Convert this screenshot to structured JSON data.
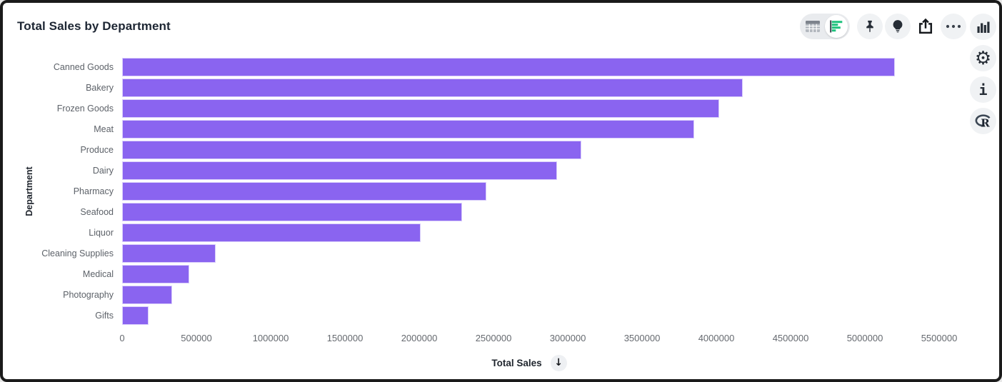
{
  "header": {
    "title": "Total Sales by Department"
  },
  "toolbar": {
    "view_toggle": [
      {
        "name": "table-view",
        "icon": "table-icon",
        "selected": false
      },
      {
        "name": "chart-view",
        "icon": "horizontal-bar-chart-icon",
        "selected": true
      }
    ],
    "buttons": [
      {
        "name": "pin",
        "icon": "pushpin-icon"
      },
      {
        "name": "insights",
        "icon": "lightbulb-icon"
      },
      {
        "name": "share",
        "icon": "share-export-icon"
      },
      {
        "name": "more-options",
        "icon": "ellipsis-icon"
      }
    ],
    "accent_green": "#1fc27d",
    "icon_dark": "#262d36",
    "pill_bg": "#e9ebee",
    "button_bg": "#f0f2f4"
  },
  "side_rail": {
    "buttons": [
      {
        "name": "chart-panel",
        "icon": "bar-chart-icon"
      },
      {
        "name": "settings",
        "icon": "gear-icon",
        "glyph": "⚙"
      },
      {
        "name": "info",
        "icon": "info-icon",
        "glyph": "i"
      },
      {
        "name": "r-language",
        "icon": "r-logo-icon",
        "glyph": "R"
      }
    ]
  },
  "sort_control": {
    "icon": "arrow-down-icon",
    "glyph": "↓"
  },
  "chart_data": {
    "type": "bar",
    "orientation": "horizontal",
    "title": "Total Sales by Department",
    "xlabel": "Total Sales",
    "ylabel": "Department",
    "categories": [
      "Canned Goods",
      "Bakery",
      "Frozen Goods",
      "Meat",
      "Produce",
      "Dairy",
      "Pharmacy",
      "Seafood",
      "Liquor",
      "Cleaning Supplies",
      "Medical",
      "Photography",
      "Gifts"
    ],
    "values": [
      5200000,
      4180000,
      4020000,
      3850000,
      3090000,
      2930000,
      2450000,
      2290000,
      2010000,
      630000,
      450000,
      335000,
      178000
    ],
    "bar_color": "#8a64f0",
    "bar_border_color": "#d9cefb",
    "xlim": [
      0,
      5600000
    ],
    "xticks": [
      0,
      500000,
      1000000,
      1500000,
      2000000,
      2500000,
      3000000,
      3500000,
      4000000,
      4500000,
      5000000,
      5500000
    ],
    "xtick_labels": [
      "0",
      "500000",
      "1000000",
      "1500000",
      "2000000",
      "2500000",
      "3000000",
      "3500000",
      "4000000",
      "4500000",
      "5000000",
      "5500000"
    ],
    "grid": false,
    "legend": "none",
    "sort": "descending"
  }
}
